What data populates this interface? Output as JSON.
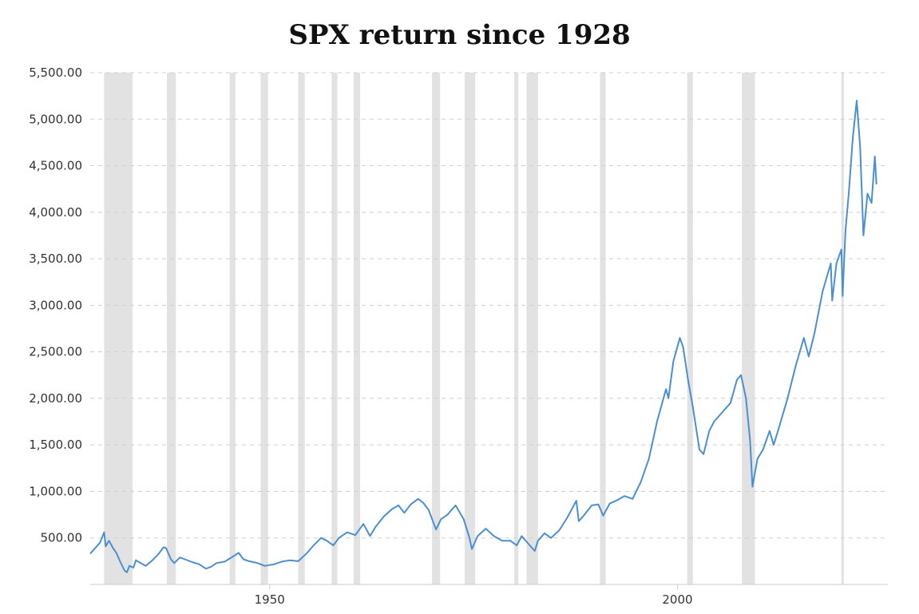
{
  "chart_data": {
    "type": "line",
    "title": "SPX return since 1928",
    "xlabel": "",
    "ylabel": "",
    "xlim": [
      1928,
      2025
    ],
    "ylim": [
      0,
      5500
    ],
    "y_ticks": [
      {
        "value": 500,
        "label": "500.00"
      },
      {
        "value": 1000,
        "label": "1,000.00"
      },
      {
        "value": 1500,
        "label": "1,500.00"
      },
      {
        "value": 2000,
        "label": "2,000.00"
      },
      {
        "value": 2500,
        "label": "2,500.00"
      },
      {
        "value": 3000,
        "label": "3,000.00"
      },
      {
        "value": 3500,
        "label": "3,500.00"
      },
      {
        "value": 4000,
        "label": "4,000.00"
      },
      {
        "value": 4500,
        "label": "4,500.00"
      },
      {
        "value": 5000,
        "label": "5,000.00"
      },
      {
        "value": 5500,
        "label": "5,500.00"
      }
    ],
    "x_ticks": [
      {
        "value": 1950,
        "label": "1950"
      },
      {
        "value": 2000,
        "label": "2000"
      }
    ],
    "grid": "horizontal-dashed",
    "line_color": "#4a8fd0",
    "band_color": "#e2e2e2",
    "recession_bands": [
      [
        1929.7,
        1933.2
      ],
      [
        1937.4,
        1938.5
      ],
      [
        1945.1,
        1945.8
      ],
      [
        1948.9,
        1949.8
      ],
      [
        1953.5,
        1954.3
      ],
      [
        1957.6,
        1958.3
      ],
      [
        1960.3,
        1961.1
      ],
      [
        1969.9,
        1970.9
      ],
      [
        1973.9,
        1975.2
      ],
      [
        1980.0,
        1980.5
      ],
      [
        1981.5,
        1982.9
      ],
      [
        1990.5,
        1991.2
      ],
      [
        2001.2,
        2001.9
      ],
      [
        2007.9,
        2009.5
      ],
      [
        2020.1,
        2020.4
      ]
    ],
    "series": [
      {
        "values": [
          [
            1928.0,
            330
          ],
          [
            1928.5,
            380
          ],
          [
            1929.2,
            450
          ],
          [
            1929.7,
            560
          ],
          [
            1929.9,
            410
          ],
          [
            1930.3,
            470
          ],
          [
            1930.8,
            390
          ],
          [
            1931.2,
            340
          ],
          [
            1931.7,
            240
          ],
          [
            1932.2,
            150
          ],
          [
            1932.5,
            130
          ],
          [
            1932.8,
            200
          ],
          [
            1933.3,
            180
          ],
          [
            1933.6,
            260
          ],
          [
            1934.2,
            230
          ],
          [
            1934.8,
            200
          ],
          [
            1935.5,
            250
          ],
          [
            1936.3,
            320
          ],
          [
            1937.0,
            400
          ],
          [
            1937.3,
            390
          ],
          [
            1937.9,
            270
          ],
          [
            1938.3,
            230
          ],
          [
            1939.0,
            290
          ],
          [
            1939.6,
            270
          ],
          [
            1940.5,
            240
          ],
          [
            1941.3,
            220
          ],
          [
            1942.2,
            170
          ],
          [
            1942.8,
            190
          ],
          [
            1943.5,
            230
          ],
          [
            1944.5,
            245
          ],
          [
            1945.5,
            300
          ],
          [
            1946.2,
            340
          ],
          [
            1946.8,
            270
          ],
          [
            1947.5,
            250
          ],
          [
            1948.5,
            230
          ],
          [
            1949.4,
            200
          ],
          [
            1950.5,
            215
          ],
          [
            1951.5,
            245
          ],
          [
            1952.5,
            260
          ],
          [
            1953.5,
            250
          ],
          [
            1954.5,
            330
          ],
          [
            1955.5,
            430
          ],
          [
            1956.3,
            500
          ],
          [
            1957.0,
            470
          ],
          [
            1957.8,
            420
          ],
          [
            1958.5,
            500
          ],
          [
            1959.5,
            560
          ],
          [
            1960.5,
            530
          ],
          [
            1961.5,
            650
          ],
          [
            1962.3,
            520
          ],
          [
            1963.0,
            620
          ],
          [
            1964.0,
            730
          ],
          [
            1965.0,
            810
          ],
          [
            1965.8,
            850
          ],
          [
            1966.5,
            770
          ],
          [
            1967.3,
            860
          ],
          [
            1968.2,
            920
          ],
          [
            1968.8,
            880
          ],
          [
            1969.5,
            800
          ],
          [
            1970.4,
            590
          ],
          [
            1971.0,
            700
          ],
          [
            1971.8,
            750
          ],
          [
            1972.8,
            850
          ],
          [
            1973.4,
            760
          ],
          [
            1973.8,
            700
          ],
          [
            1974.5,
            500
          ],
          [
            1974.8,
            380
          ],
          [
            1975.5,
            520
          ],
          [
            1976.5,
            600
          ],
          [
            1977.5,
            520
          ],
          [
            1978.5,
            470
          ],
          [
            1979.5,
            470
          ],
          [
            1980.3,
            420
          ],
          [
            1980.9,
            520
          ],
          [
            1981.6,
            450
          ],
          [
            1982.5,
            360
          ],
          [
            1982.9,
            470
          ],
          [
            1983.7,
            550
          ],
          [
            1984.5,
            500
          ],
          [
            1985.5,
            580
          ],
          [
            1986.5,
            720
          ],
          [
            1987.6,
            900
          ],
          [
            1987.9,
            680
          ],
          [
            1988.5,
            740
          ],
          [
            1989.5,
            850
          ],
          [
            1990.3,
            860
          ],
          [
            1990.9,
            740
          ],
          [
            1991.7,
            870
          ],
          [
            1992.5,
            900
          ],
          [
            1993.5,
            950
          ],
          [
            1994.5,
            920
          ],
          [
            1995.5,
            1100
          ],
          [
            1996.5,
            1350
          ],
          [
            1997.5,
            1750
          ],
          [
            1998.6,
            2100
          ],
          [
            1998.9,
            2000
          ],
          [
            1999.5,
            2400
          ],
          [
            2000.3,
            2650
          ],
          [
            2000.7,
            2550
          ],
          [
            2001.3,
            2200
          ],
          [
            2001.9,
            1900
          ],
          [
            2002.7,
            1450
          ],
          [
            2003.2,
            1400
          ],
          [
            2003.9,
            1650
          ],
          [
            2004.5,
            1750
          ],
          [
            2005.5,
            1850
          ],
          [
            2006.5,
            1950
          ],
          [
            2007.3,
            2200
          ],
          [
            2007.8,
            2250
          ],
          [
            2008.4,
            2000
          ],
          [
            2008.9,
            1550
          ],
          [
            2009.2,
            1050
          ],
          [
            2009.8,
            1350
          ],
          [
            2010.5,
            1450
          ],
          [
            2011.3,
            1650
          ],
          [
            2011.8,
            1500
          ],
          [
            2012.5,
            1700
          ],
          [
            2013.5,
            2000
          ],
          [
            2014.5,
            2350
          ],
          [
            2015.5,
            2650
          ],
          [
            2016.1,
            2450
          ],
          [
            2016.8,
            2700
          ],
          [
            2017.8,
            3150
          ],
          [
            2018.8,
            3450
          ],
          [
            2018.98,
            3050
          ],
          [
            2019.5,
            3450
          ],
          [
            2020.1,
            3600
          ],
          [
            2020.25,
            3100
          ],
          [
            2020.6,
            3800
          ],
          [
            2021.0,
            4200
          ],
          [
            2021.5,
            4800
          ],
          [
            2021.98,
            5200
          ],
          [
            2022.4,
            4700
          ],
          [
            2022.8,
            3750
          ],
          [
            2023.3,
            4200
          ],
          [
            2023.8,
            4100
          ],
          [
            2024.2,
            4600
          ],
          [
            2024.4,
            4300
          ]
        ]
      }
    ]
  }
}
